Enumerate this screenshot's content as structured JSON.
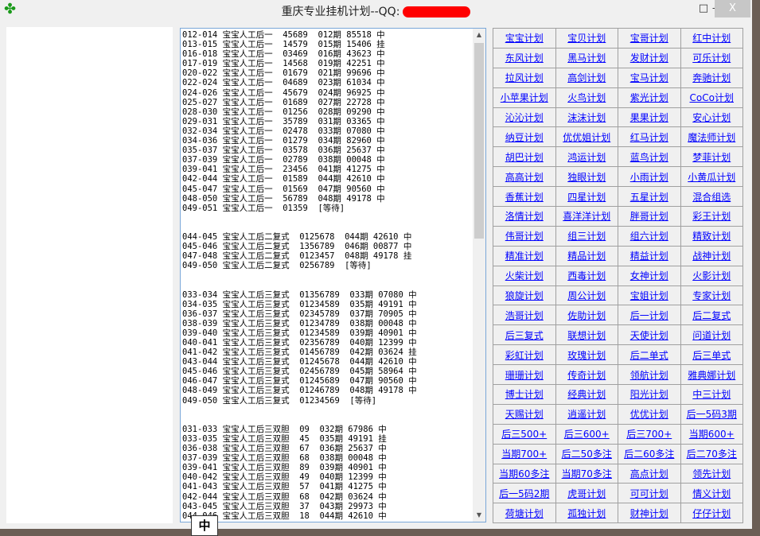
{
  "window": {
    "title": "重庆专业挂机计划--QQ:",
    "logo_icon": "clover-icon",
    "minimize": "‒",
    "maximize": "□",
    "close": "X"
  },
  "results": {
    "lines": [
      "012-014 宝宝人工后一  45689  012期 85518 中",
      "013-015 宝宝人工后一  14579  015期 15406 挂",
      "016-018 宝宝人工后一  03469  016期 43623 中",
      "017-019 宝宝人工后一  14568  019期 42251 中",
      "020-022 宝宝人工后一  01679  021期 99696 中",
      "022-024 宝宝人工后一  04689  023期 61034 中",
      "024-026 宝宝人工后一  45679  024期 96925 中",
      "025-027 宝宝人工后一  01689  027期 22728 中",
      "028-030 宝宝人工后一  01256  028期 09290 中",
      "029-031 宝宝人工后一  35789  031期 03365 中",
      "032-034 宝宝人工后一  02478  033期 07080 中",
      "034-036 宝宝人工后一  01279  034期 82960 中",
      "035-037 宝宝人工后一  03578  036期 25637 中",
      "037-039 宝宝人工后一  02789  038期 00048 中",
      "039-041 宝宝人工后一  23456  041期 41275 中",
      "042-044 宝宝人工后一  01589  044期 42610 中",
      "045-047 宝宝人工后一  01569  047期 90560 中",
      "048-050 宝宝人工后一  56789  048期 49178 中",
      "049-051 宝宝人工后一  01359  [等待]",
      "",
      "",
      "044-045 宝宝人工后二复式  0125678  044期 42610 中",
      "045-046 宝宝人工后二复式  1356789  046期 00877 中",
      "047-048 宝宝人工后二复式  0123457  048期 49178 挂",
      "049-050 宝宝人工后二复式  0256789  [等待]",
      "",
      "",
      "033-034 宝宝人工后三复式  01356789  033期 07080 中",
      "034-035 宝宝人工后三复式  01234589  035期 49191 中",
      "036-037 宝宝人工后三复式  02345789  037期 70905 中",
      "038-039 宝宝人工后三复式  01234789  038期 00048 中",
      "039-040 宝宝人工后三复式  01234589  039期 40901 中",
      "040-041 宝宝人工后三复式  02356789  040期 12399 中",
      "041-042 宝宝人工后三复式  01456789  042期 03624 挂",
      "043-044 宝宝人工后三复式  01245678  044期 42610 中",
      "045-046 宝宝人工后三复式  02456789  045期 58964 中",
      "046-047 宝宝人工后三复式  01245689  047期 90560 中",
      "048-049 宝宝人工后三复式  01246789  048期 49178 中",
      "049-050 宝宝人工后三复式  01234569  [等待]",
      "",
      "",
      "031-033 宝宝人工后三双胆  09  032期 67986 中",
      "033-035 宝宝人工后三双胆  45  035期 49191 挂",
      "036-038 宝宝人工后三双胆  67  036期 25637 中",
      "037-039 宝宝人工后三双胆  68  038期 00048 中",
      "039-041 宝宝人工后三双胆  89  039期 40901 中",
      "040-042 宝宝人工后三双胆  49  040期 12399 中",
      "041-043 宝宝人工后三双胆  57  041期 41275 中",
      "042-044 宝宝人工后三双胆  68  042期 03624 中",
      "043-045 宝宝人工后三双胆  37  043期 29973 中",
      "044-046 宝宝人工后三双胆  18  044期 42610 中"
    ]
  },
  "plans": [
    [
      "宝宝计划",
      "宝贝计划",
      "宝哥计划",
      "红中计划"
    ],
    [
      "东风计划",
      "黑马计划",
      "发财计划",
      "可乐计划"
    ],
    [
      "拉风计划",
      "高剑计划",
      "宝马计划",
      "奔驰计划"
    ],
    [
      "小苹果计划",
      "火鸟计划",
      "紫光计划",
      "CoCo计划"
    ],
    [
      "沁沁计划",
      "沫沫计划",
      "果果计划",
      "安心计划"
    ],
    [
      "纳豆计划",
      "优优姐计划",
      "红马计划",
      "魔法师计划"
    ],
    [
      "胡巴计划",
      "鸿运计划",
      "蓝鸟计划",
      "梦菲计划"
    ],
    [
      "高高计划",
      "独眼计划",
      "小雨计划",
      "小黄瓜计划"
    ],
    [
      "香蕉计划",
      "四星计划",
      "五星计划",
      "混合组选"
    ],
    [
      "洛情计划",
      "喜洋洋计划",
      "胖哥计划",
      "彩王计划"
    ],
    [
      "伟哥计划",
      "组三计划",
      "组六计划",
      "精致计划"
    ],
    [
      "精准计划",
      "精品计划",
      "精益计划",
      "战神计划"
    ],
    [
      "火柴计划",
      "西毒计划",
      "女神计划",
      "火影计划"
    ],
    [
      "狼旋计划",
      "周公计划",
      "宝姐计划",
      "专家计划"
    ],
    [
      "浩哥计划",
      "佐助计划",
      "后一计划",
      "后二复式"
    ],
    [
      "后三复式",
      "联想计划",
      "天使计划",
      "问道计划"
    ],
    [
      "彩虹计划",
      "玫瑰计划",
      "后二单式",
      "后三单式"
    ],
    [
      "珊珊计划",
      "传奇计划",
      "领航计划",
      "雅典娜计划"
    ],
    [
      "博士计划",
      "经典计划",
      "阳光计划",
      "中三计划"
    ],
    [
      "天赐计划",
      "逍遥计划",
      "优优计划",
      "后一5码3期"
    ],
    [
      "后三500+",
      "后三600+",
      "后三700+",
      "当期600+"
    ],
    [
      "当期700+",
      "后二50多注",
      "后二60多注",
      "后二70多注"
    ],
    [
      "当期60多注",
      "当期70多注",
      "高点计划",
      "领先计划"
    ],
    [
      "后一5码2期",
      "虎哥计划",
      "可可计划",
      "情义计划"
    ],
    [
      "荷塘计划",
      "孤独计划",
      "财神计划",
      "仔仔计划"
    ]
  ],
  "ime_popup": "中"
}
